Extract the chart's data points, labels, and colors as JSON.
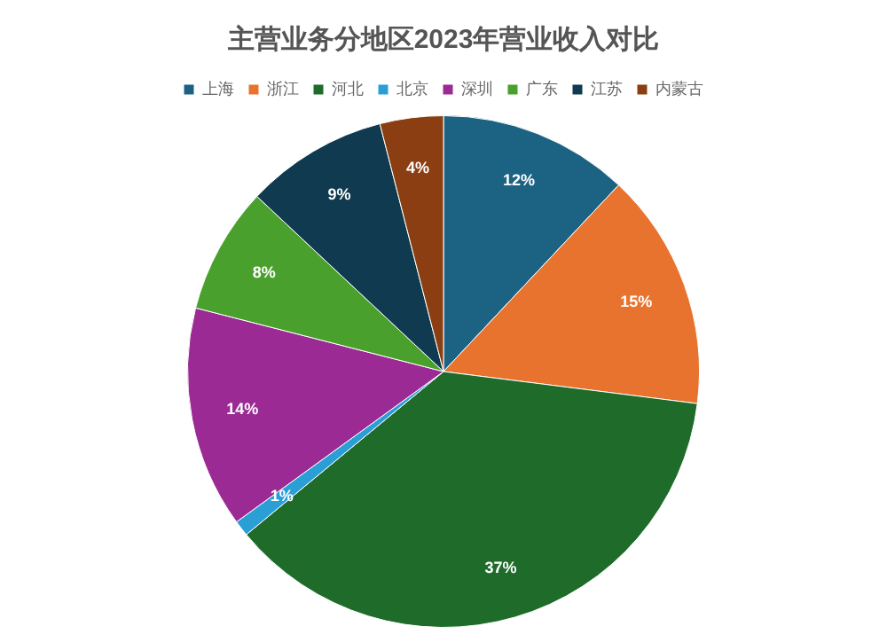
{
  "chart_data": {
    "type": "pie",
    "title": "主营业务分地区2023年营业收入对比",
    "categories": [
      "上海",
      "浙江",
      "河北",
      "北京",
      "深圳",
      "广东",
      "江苏",
      "内蒙古"
    ],
    "values": [
      12,
      15,
      37,
      1,
      14,
      8,
      9,
      4
    ],
    "value_labels": [
      "12%",
      "15%",
      "37%",
      "1%",
      "14%",
      "8%",
      "9%",
      "4%"
    ],
    "colors": [
      "#1b6283",
      "#e8732f",
      "#1e6b2a",
      "#2a9fd6",
      "#9b2a94",
      "#4aa02c",
      "#0f3a4f",
      "#8b3e12"
    ],
    "legend": "top"
  }
}
